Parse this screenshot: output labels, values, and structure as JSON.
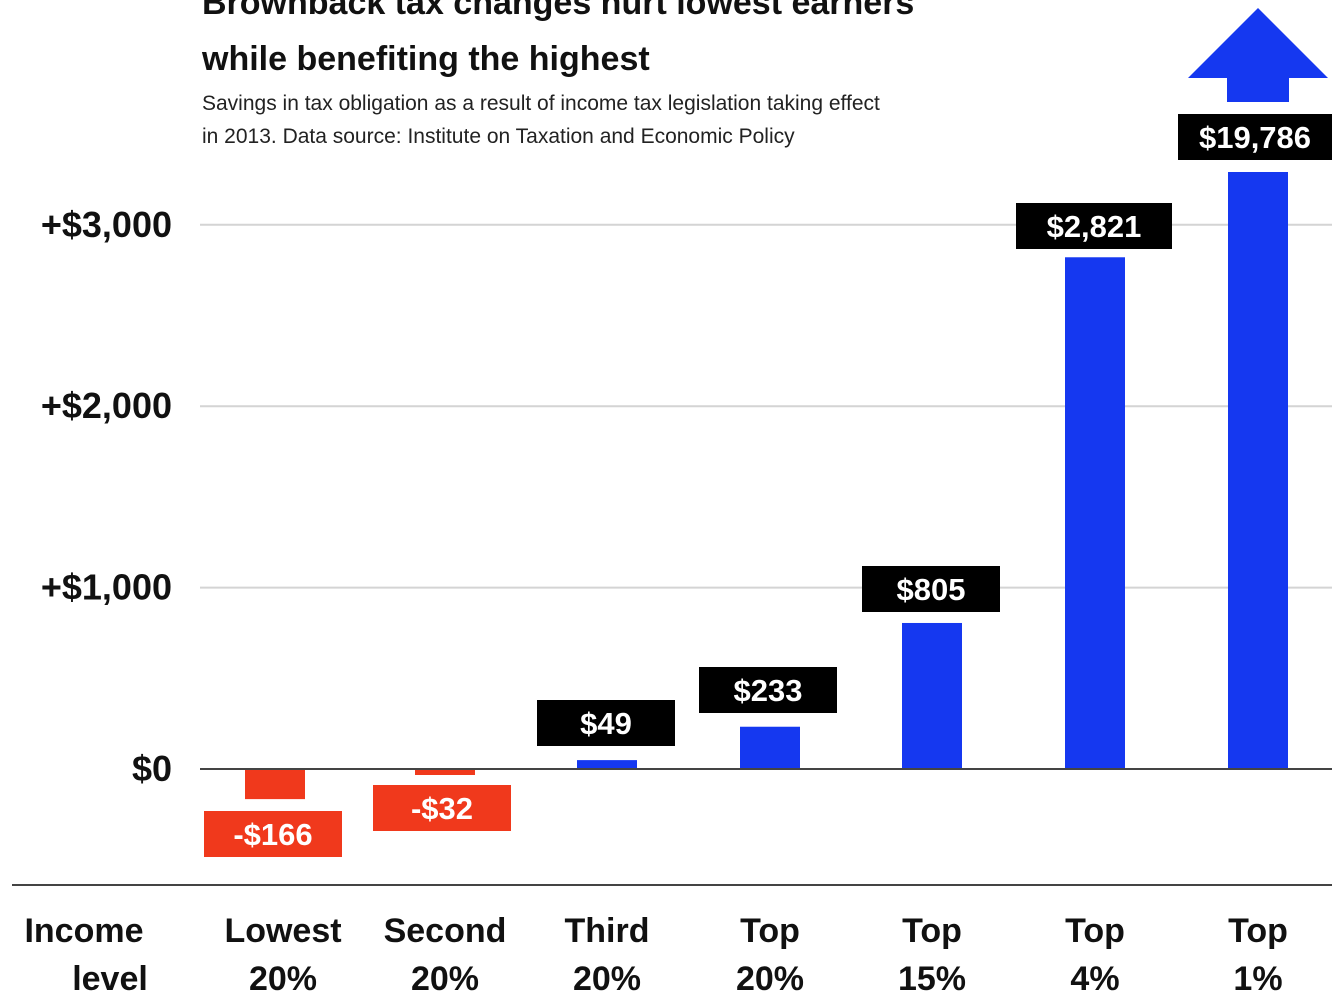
{
  "chart_data": {
    "type": "bar",
    "title": "Brownback tax changes hurt lowest earners while benefiting the highest",
    "title_lines": [
      "Brownback tax changes hurt lowest earners",
      "while benefiting the highest"
    ],
    "subtitle": "Savings in tax obligation as a result of income tax legislation taking effect in 2013. Data source: Institute on Taxation and Economic Policy",
    "subtitle_lines": [
      "Savings in tax obligation as a result of income tax legislation taking effect",
      "in 2013. Data source: Institute on Taxation and Economic Policy"
    ],
    "xlabel": "Income level",
    "xlabel_lines": [
      "Income",
      "level"
    ],
    "ylabel": "",
    "categories": [
      "Lowest 20%",
      "Second 20%",
      "Third 20%",
      "Top 20%",
      "Top 15%",
      "Top 4%",
      "Top 1%"
    ],
    "category_lines": [
      [
        "Lowest",
        "20%"
      ],
      [
        "Second",
        "20%"
      ],
      [
        "Third",
        "20%"
      ],
      [
        "Top",
        "20%"
      ],
      [
        "Top",
        "15%"
      ],
      [
        "Top",
        "4%"
      ],
      [
        "Top",
        "1%"
      ]
    ],
    "values": [
      -166,
      -32,
      49,
      233,
      805,
      2821,
      19786
    ],
    "data_labels": [
      "-$166",
      "-$32",
      "$49",
      "$233",
      "$805",
      "$2,821",
      "$19,786"
    ],
    "yticks": [
      0,
      1000,
      2000,
      3000
    ],
    "ytick_labels": [
      "$0",
      "+$1,000",
      "+$2,000",
      "+$3,000"
    ],
    "ylim": [
      -600,
      3700
    ],
    "axis_break": "Top 1% bar exceeds the axis, shown with an upward arrow",
    "grid": true,
    "colors": {
      "positive": "#1538f0",
      "negative": "#f0391c",
      "label_positive_bg": "#000000",
      "label_negative_bg": "#f0391c",
      "grid": "#d4d4d4",
      "baseline": "#444444"
    }
  }
}
